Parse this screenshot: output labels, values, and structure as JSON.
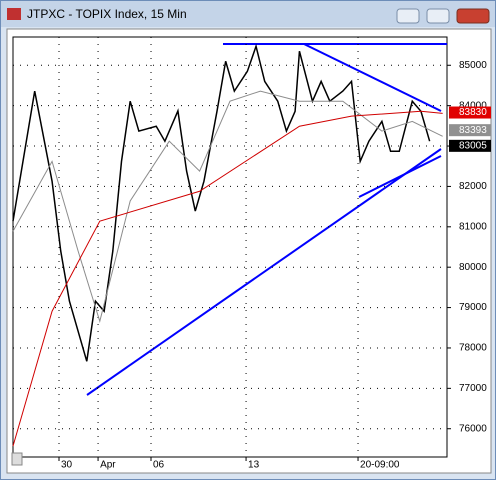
{
  "window": {
    "title": "JTPXC - TOPIX Index, 15 Min"
  },
  "chart_data": {
    "type": "line",
    "xlim": [
      0,
      100
    ],
    "ylim": [
      75300,
      85700
    ],
    "yticks": [
      76000,
      77000,
      78000,
      79000,
      80000,
      81000,
      82000,
      83000,
      84000,
      85000
    ],
    "xticks": [
      {
        "value": 10.6,
        "label": "30"
      },
      {
        "value": 19.6,
        "label": "Apr"
      },
      {
        "value": 31.8,
        "label": "06"
      },
      {
        "value": 53.7,
        "label": "13"
      },
      {
        "value": 79.5,
        "label": "20-09:00"
      }
    ],
    "grid": true,
    "series": [
      {
        "color": "#000000",
        "x": [
          0,
          5,
          9,
          11,
          13,
          17,
          19,
          21,
          23,
          25,
          27,
          29,
          33,
          35,
          38,
          40,
          42,
          44,
          47,
          49,
          51,
          54,
          56,
          58,
          61,
          63,
          65,
          66,
          69,
          71,
          73,
          76,
          78,
          80,
          82,
          85,
          87,
          89,
          92,
          94,
          96
        ],
        "values": [
          81140,
          84360,
          82130,
          80400,
          79160,
          77670,
          79160,
          78910,
          80400,
          82620,
          84110,
          83370,
          83490,
          83120,
          83870,
          82380,
          81390,
          82130,
          83860,
          85100,
          84360,
          84850,
          85470,
          84600,
          84110,
          83370,
          83860,
          85350,
          84110,
          84600,
          84110,
          84360,
          84600,
          82620,
          83120,
          83610,
          82870,
          82870,
          84110,
          83860,
          83120
        ]
      },
      {
        "color": "#8c8c8c",
        "x": [
          0,
          9,
          15,
          20,
          27,
          36,
          43,
          50,
          57,
          66,
          76,
          85,
          92,
          99
        ],
        "values": [
          80890,
          82620,
          80400,
          78660,
          81640,
          83120,
          82380,
          84110,
          84360,
          84110,
          84110,
          83370,
          83610,
          83240
        ]
      },
      {
        "color": "#d00000",
        "x": [
          0,
          9,
          20,
          43,
          66,
          78,
          94,
          99
        ],
        "values": [
          75570,
          78910,
          81140,
          81880,
          83490,
          83740,
          83860,
          83810
        ]
      }
    ],
    "price_markers": [
      {
        "value": 83830,
        "color": "#e00000"
      },
      {
        "value": 83393,
        "color": "#909090"
      },
      {
        "value": 83005,
        "color": "#000000"
      }
    ]
  }
}
